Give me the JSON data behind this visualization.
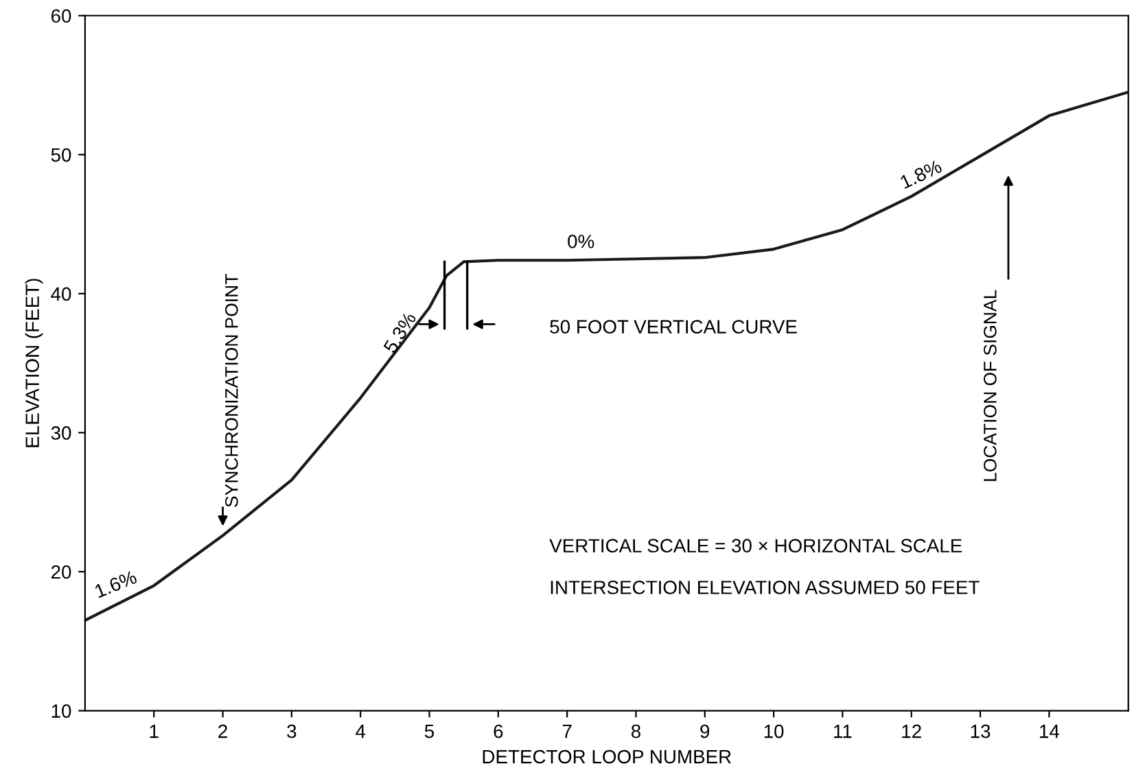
{
  "chart_data": {
    "type": "line",
    "xlabel": "DETECTOR LOOP NUMBER",
    "ylabel": "ELEVATION (FEET)",
    "series": [
      {
        "color": "#1a1a1a",
        "x": [
          0,
          1,
          2,
          3,
          4,
          5,
          5.25,
          5.5,
          6,
          7,
          8,
          9,
          10,
          11,
          12,
          13,
          14,
          15.15
        ],
        "values": [
          16.5,
          19.0,
          22.6,
          26.6,
          32.5,
          39.0,
          41.3,
          42.3,
          42.4,
          42.4,
          42.5,
          42.6,
          43.2,
          44.6,
          47.0,
          49.9,
          52.8,
          54.5
        ]
      }
    ],
    "xlim": [
      0,
      15.15
    ],
    "ylim": [
      10,
      60
    ],
    "xticks": [
      1,
      2,
      3,
      4,
      5,
      6,
      7,
      8,
      9,
      10,
      11,
      12,
      13,
      14
    ],
    "yticks": [
      10,
      20,
      30,
      40,
      50,
      60
    ],
    "grid": false,
    "marker": "none",
    "line_style": "solid",
    "annotations": [
      {
        "text": "1.6%",
        "x": 0.5,
        "y": 17.8
      },
      {
        "text": "SYNCHRONIZATION POINT",
        "x": 2,
        "y": 22.6
      },
      {
        "text": "5.3%",
        "x": 4.6,
        "y": 36.5
      },
      {
        "text": "0%",
        "x": 7.2,
        "y": 42.4
      },
      "50 FOOT VERTICAL CURVE",
      {
        "text": "1.8%",
        "x": 12.2,
        "y": 47.0
      },
      "LOCATION OF SIGNAL",
      "VERTICAL SCALE = 30 × HORIZONTAL SCALE",
      "INTERSECTION ELEVATION ASSUMED 50 FEET"
    ]
  }
}
